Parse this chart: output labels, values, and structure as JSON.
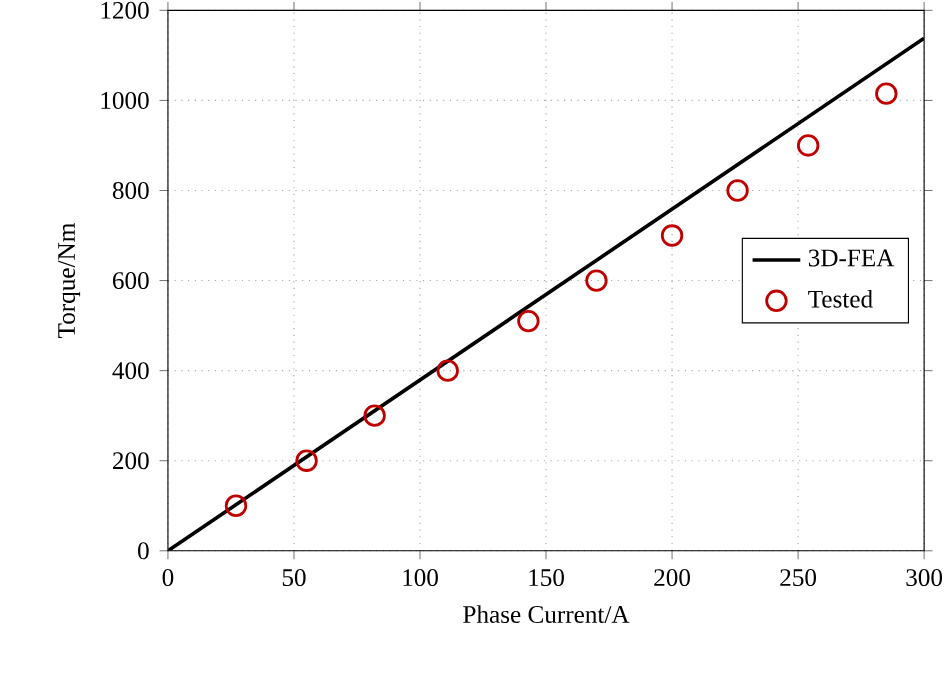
{
  "chart_data": {
    "type": "line",
    "xlabel": "Phase Current/A",
    "ylabel": "Torque/Nm",
    "xlim": [
      0,
      300
    ],
    "xticks": [
      0,
      50,
      100,
      150,
      200,
      250,
      300
    ],
    "ylim": [
      0,
      1200
    ],
    "yticks": [
      0,
      200,
      400,
      600,
      800,
      1000,
      1200
    ],
    "grid": true,
    "legend": "right",
    "series": [
      {
        "name": "3D-FEA",
        "color": "#000000",
        "x": [
          0,
          300
        ],
        "values": [
          0,
          1138
        ],
        "marker": "none",
        "line_style": "solid"
      },
      {
        "name": "Tested",
        "type": "scatter",
        "color": "#c00000",
        "x": [
          27,
          55,
          82,
          111,
          143,
          170,
          200,
          226,
          254,
          285
        ],
        "values": [
          100,
          200,
          300,
          400,
          510,
          600,
          700,
          800,
          900,
          1015
        ],
        "marker": "circle"
      }
    ]
  }
}
